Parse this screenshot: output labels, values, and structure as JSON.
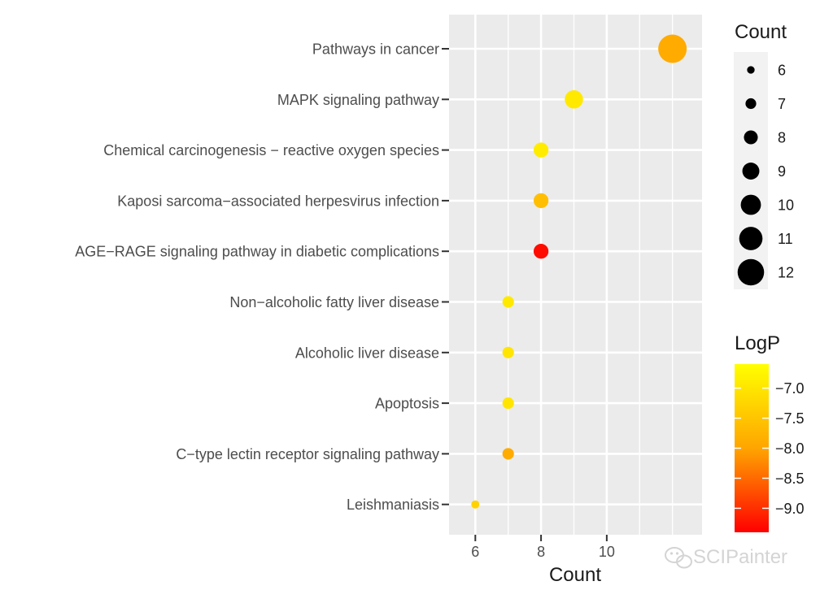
{
  "chart_data": {
    "type": "scatter",
    "xlabel": "Count",
    "xlim": [
      5.2,
      12.9
    ],
    "xticks": [
      6,
      8,
      10
    ],
    "x_minor_gridlines": [
      7,
      9,
      11,
      12
    ],
    "grid": true,
    "categories": [
      "Pathways in cancer",
      "MAPK signaling pathway",
      "Chemical carcinogenesis − reactive oxygen species",
      "Kaposi sarcoma−associated herpesvirus infection",
      "AGE−RAGE signaling pathway in diabetic complications",
      "Non−alcoholic fatty liver disease",
      "Alcoholic liver disease",
      "Apoptosis",
      "C−type lectin receptor signaling pathway",
      "Leishmaniasis"
    ],
    "points": [
      {
        "term": "Pathways in cancer",
        "count": 12,
        "logp": -7.9
      },
      {
        "term": "MAPK signaling pathway",
        "count": 9,
        "logp": -6.95
      },
      {
        "term": "Chemical carcinogenesis − reactive oxygen species",
        "count": 8,
        "logp": -6.9
      },
      {
        "term": "Kaposi sarcoma−associated herpesvirus infection",
        "count": 8,
        "logp": -7.6
      },
      {
        "term": "AGE−RAGE signaling pathway in diabetic complications",
        "count": 8,
        "logp": -9.3
      },
      {
        "term": "Non−alcoholic fatty liver disease",
        "count": 7,
        "logp": -6.95
      },
      {
        "term": "Alcoholic liver disease",
        "count": 7,
        "logp": -7.0
      },
      {
        "term": "Apoptosis",
        "count": 7,
        "logp": -7.0
      },
      {
        "term": "C−type lectin receptor signaling pathway",
        "count": 7,
        "logp": -7.9
      },
      {
        "term": "Leishmaniasis",
        "count": 6,
        "logp": -7.3
      }
    ],
    "size_legend": {
      "title": "Count",
      "values": [
        6,
        7,
        8,
        9,
        10,
        11,
        12
      ]
    },
    "color_legend": {
      "title": "LogP",
      "min": -9.4,
      "max": -6.6,
      "ticks": [
        {
          "value": -7.0,
          "label": "−7.0"
        },
        {
          "value": -7.5,
          "label": "−7.5"
        },
        {
          "value": -8.0,
          "label": "−8.0"
        },
        {
          "value": -8.5,
          "label": "−8.5"
        },
        {
          "value": -9.0,
          "label": "−9.0"
        }
      ],
      "low_color": "#ff0000",
      "mid_color": "#ffa500",
      "high_color": "#ffff00"
    },
    "panel_background": "#ebebeb",
    "gridline_color": "#ffffff",
    "watermark": "SCIPainter"
  }
}
